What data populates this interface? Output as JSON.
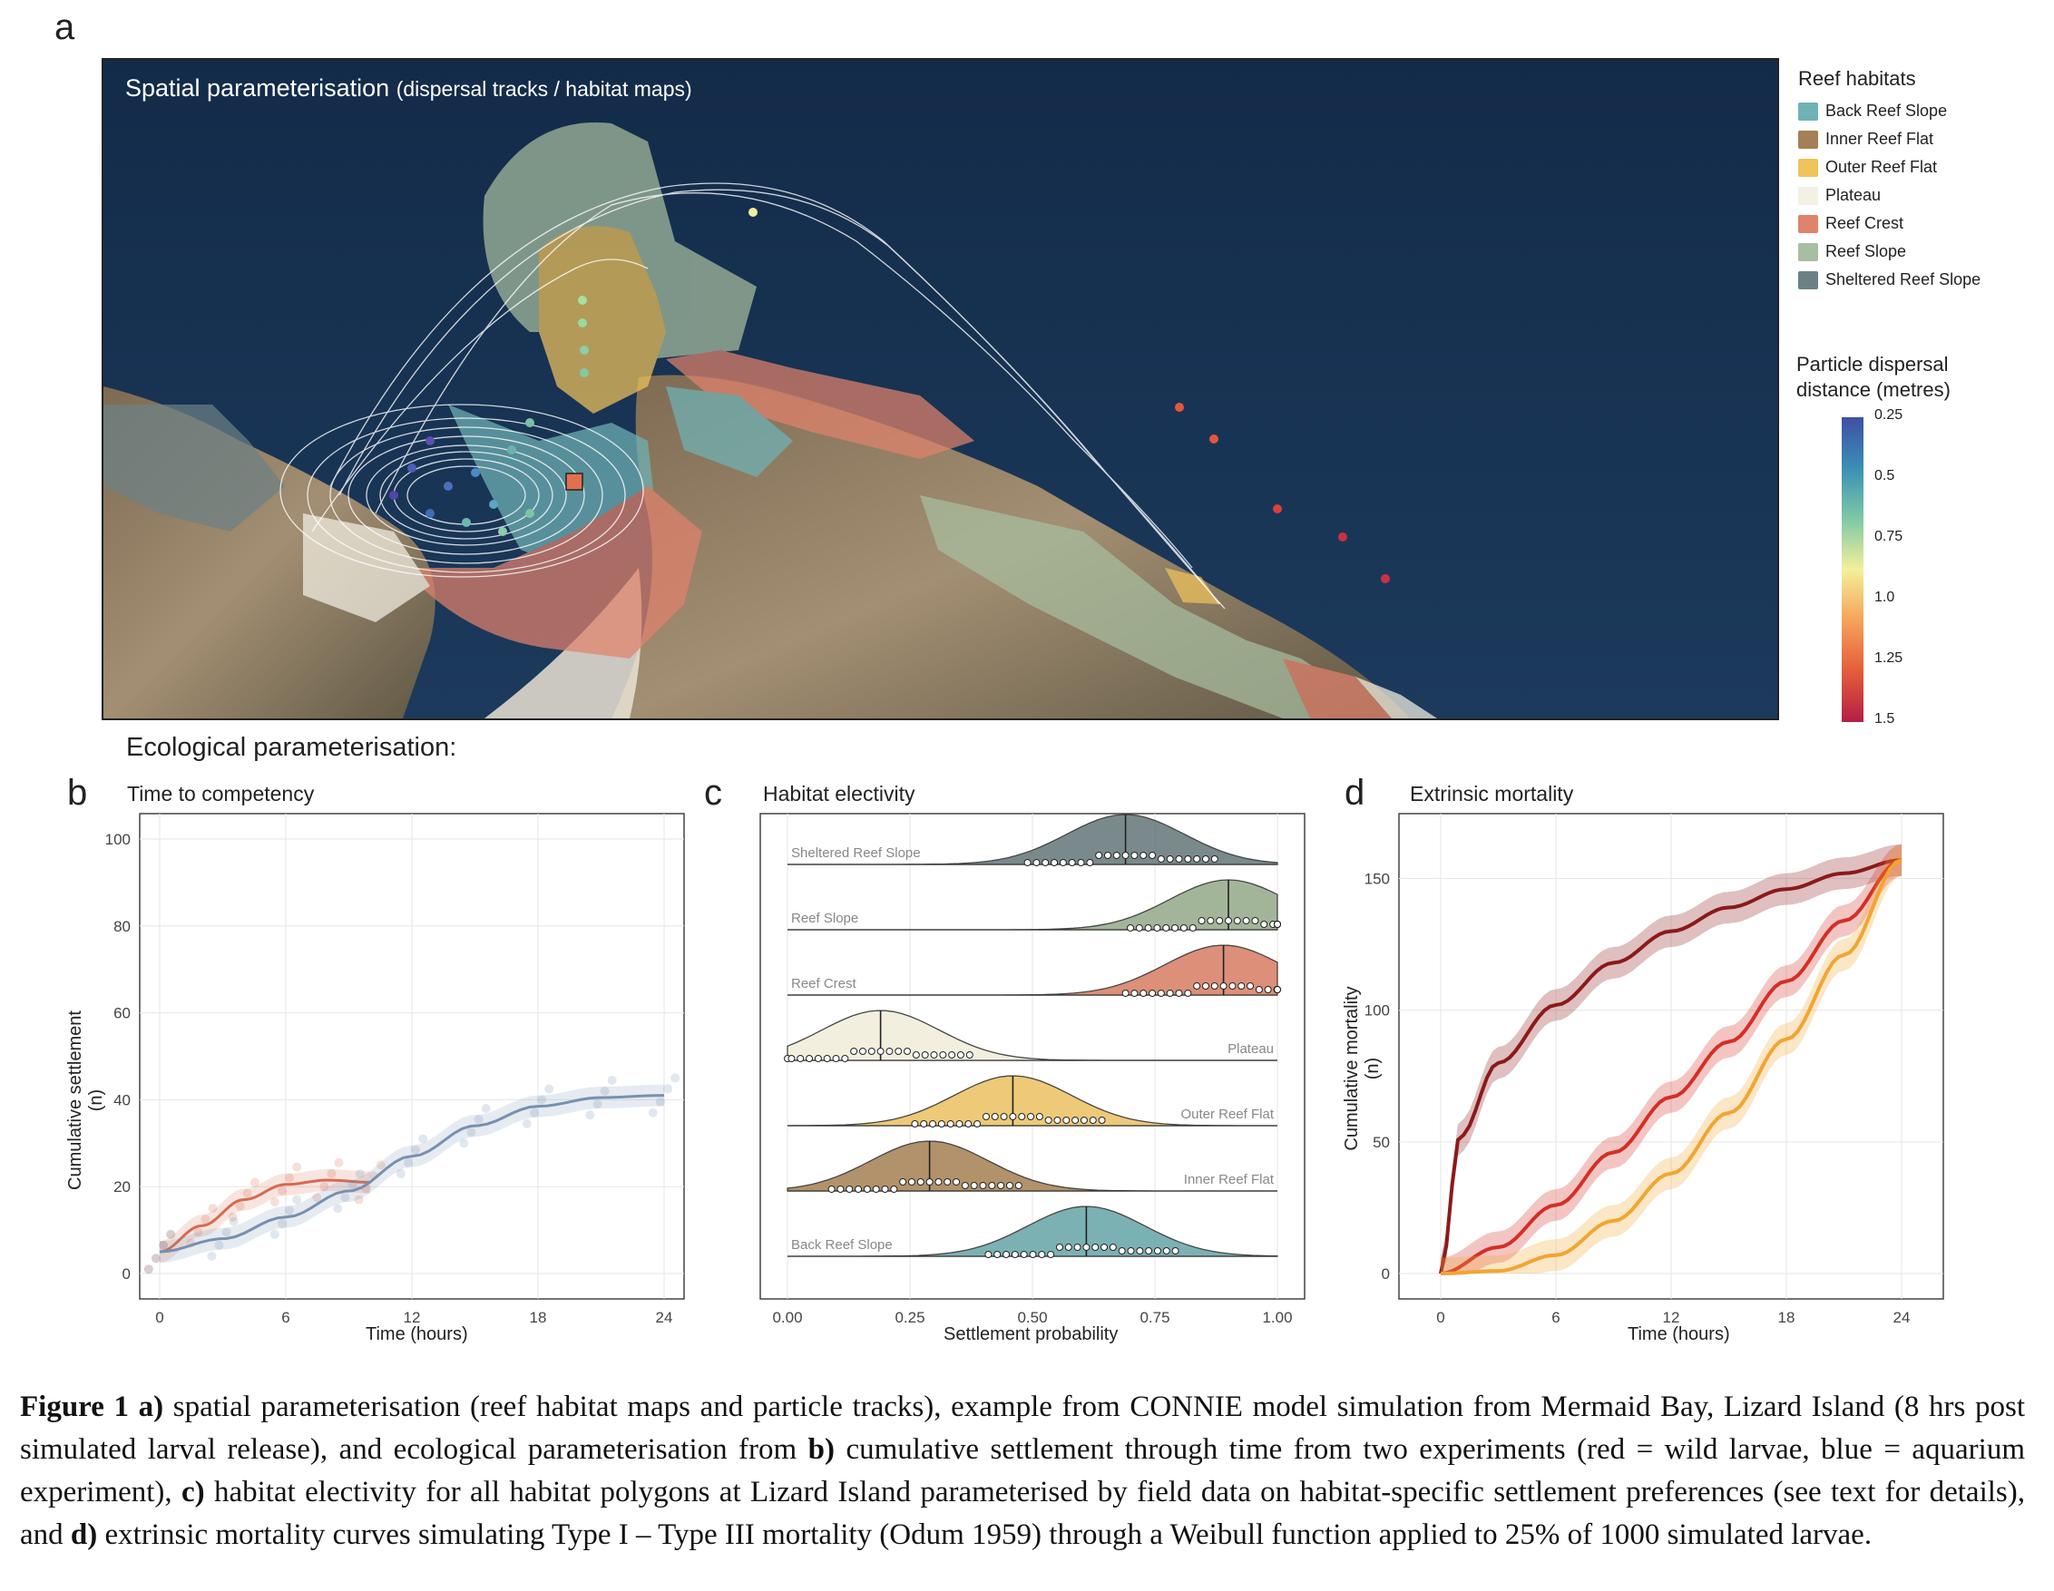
{
  "panel_a": {
    "letter": "a",
    "title_main": "Spatial parameterisation",
    "title_sub": "(dispersal tracks / habitat maps)"
  },
  "legend": {
    "title": "Reef habitats",
    "items": [
      {
        "label": "Back Reef Slope",
        "color": "#6fb3b6"
      },
      {
        "label": "Inner Reef Flat",
        "color": "#a57f55"
      },
      {
        "label": "Outer Reef Flat",
        "color": "#f0c35b"
      },
      {
        "label": "Plateau",
        "color": "#f4f0e3"
      },
      {
        "label": "Reef Crest",
        "color": "#e1826c"
      },
      {
        "label": "Reef Slope",
        "color": "#a7bea0"
      },
      {
        "label": "Sheltered Reef Slope",
        "color": "#6c8185"
      }
    ]
  },
  "colorbar": {
    "title_line1": "Particle dispersal",
    "title_line2": "distance (metres)",
    "ticks": [
      "0.25",
      "0.5",
      "0.75",
      "1.0",
      "1.25",
      "1.5"
    ]
  },
  "eco_title": "Ecological parameterisation:",
  "panel_b": {
    "letter": "b",
    "title": "Time to competency",
    "xlabel": "Time (hours)",
    "ylabel": "Cumulative settlement (n)",
    "xticks": [
      "0",
      "6",
      "12",
      "18",
      "24"
    ],
    "yticks": [
      "0",
      "20",
      "40",
      "60",
      "80",
      "100"
    ]
  },
  "panel_c": {
    "letter": "c",
    "title": "Habitat electivity",
    "xlabel": "Settlement probability",
    "xticks": [
      "0.00",
      "0.25",
      "0.50",
      "0.75",
      "1.00"
    ]
  },
  "panel_d": {
    "letter": "d",
    "title": "Extrinsic mortality",
    "xlabel": "Time (hours)",
    "ylabel": "Cumulative mortality (n)",
    "xticks": [
      "0",
      "6",
      "12",
      "18",
      "24"
    ],
    "yticks": [
      "0",
      "50",
      "100",
      "150"
    ]
  },
  "chart_data": [
    {
      "type": "line",
      "panel": "b",
      "title": "Time to competency",
      "xlabel": "Time (hours)",
      "ylabel": "Cumulative settlement (n)",
      "xlim": [
        0,
        24
      ],
      "ylim": [
        0,
        100
      ],
      "series": [
        {
          "color": "#d9694e",
          "x": [
            0,
            2,
            4,
            6,
            8,
            10
          ],
          "y": [
            5,
            11,
            17,
            20.5,
            21.5,
            21
          ]
        },
        {
          "color": "#7790b0",
          "x": [
            0,
            3,
            6,
            9,
            12,
            15,
            18,
            21,
            24
          ],
          "y": [
            5,
            8,
            13,
            19,
            27,
            34,
            38.5,
            40.5,
            41
          ]
        }
      ]
    },
    {
      "type": "area",
      "panel": "c",
      "title": "Habitat electivity",
      "xlabel": "Settlement probability",
      "xlim": [
        0,
        1
      ],
      "categories": [
        "Sheltered Reef Slope",
        "Reef Slope",
        "Reef Crest",
        "Plateau",
        "Outer Reef Flat",
        "Inner Reef Flat",
        "Back Reef Slope"
      ],
      "medians": [
        0.69,
        0.9,
        0.89,
        0.19,
        0.46,
        0.29,
        0.61
      ],
      "colors": [
        "#6c7d80",
        "#9aad8e",
        "#d9836b",
        "#f2eedc",
        "#ecc46a",
        "#a9875a",
        "#6ea9ac"
      ]
    },
    {
      "type": "line",
      "panel": "d",
      "title": "Extrinsic mortality",
      "xlabel": "Time (hours)",
      "ylabel": "Cumulative mortality (n)",
      "xlim": [
        0,
        24
      ],
      "ylim": [
        0,
        165
      ],
      "series": [
        {
          "color": "#8b1a1a",
          "x": [
            0,
            1,
            3,
            6,
            9,
            12,
            15,
            18,
            21,
            24
          ],
          "y": [
            0,
            52,
            80,
            102,
            118,
            130,
            139,
            146,
            152,
            157
          ]
        },
        {
          "color": "#d42f25",
          "x": [
            0,
            3,
            6,
            9,
            12,
            15,
            18,
            21,
            24
          ],
          "y": [
            0,
            10,
            26,
            46,
            67,
            88,
            111,
            134,
            157
          ]
        },
        {
          "color": "#f2a531",
          "x": [
            0,
            3,
            6,
            9,
            12,
            15,
            18,
            21,
            24
          ],
          "y": [
            0,
            1,
            7,
            20,
            38,
            61,
            89,
            121,
            157
          ]
        }
      ]
    }
  ],
  "caption": {
    "fig": "Figure 1",
    "a": "a)",
    "t1": " spatial parameterisation (reef habitat maps and particle tracks), example from CONNIE model simulation from Mermaid Bay, Lizard Island (8 hrs post simulated larval release), and ecological parameterisation from ",
    "b": "b)",
    "t2": " cumulative settlement through time from two experiments (red = wild larvae, blue = aquarium experiment), ",
    "c": "c)",
    "t3": " habitat electivity for all habitat polygons at Lizard Island parameterised by field data on habitat-specific settlement preferences (see text for details), and ",
    "d": "d)",
    "t4": " extrinsic mortality curves simulating Type I – Type III mortality (Odum 1959) through a Weibull function applied to 25% of 1000 simulated larvae."
  }
}
